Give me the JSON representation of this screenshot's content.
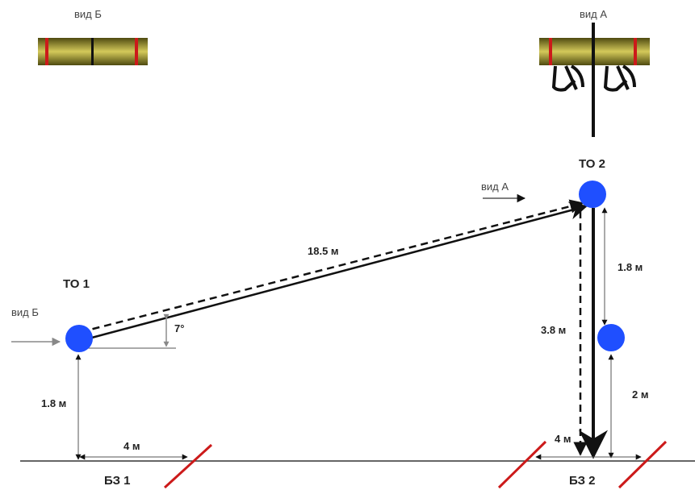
{
  "views": {
    "view_b_title": "вид Б",
    "view_a_title": "вид А"
  },
  "points": {
    "to1": "ТО 1",
    "to2": "ТО 2"
  },
  "arrows": {
    "view_a_label": "вид А",
    "view_b_label": "вид Б"
  },
  "dimensions": {
    "diagonal": "18.5 м",
    "angle": "7°",
    "height_to1": "1.8 м",
    "ground_left": "4 м",
    "to2_vertical": "1.8 м",
    "dashed_vertical": "3.8 м",
    "lower_height": "2 м",
    "ground_right": "4 м"
  },
  "zones": {
    "bz1": "БЗ 1",
    "bz2": "БЗ 2"
  },
  "colors": {
    "node": "#1f4fff",
    "red": "#cc1a1a",
    "olive_dark": "#4e4a10",
    "olive_light": "#d4c95a",
    "line": "#111111"
  }
}
